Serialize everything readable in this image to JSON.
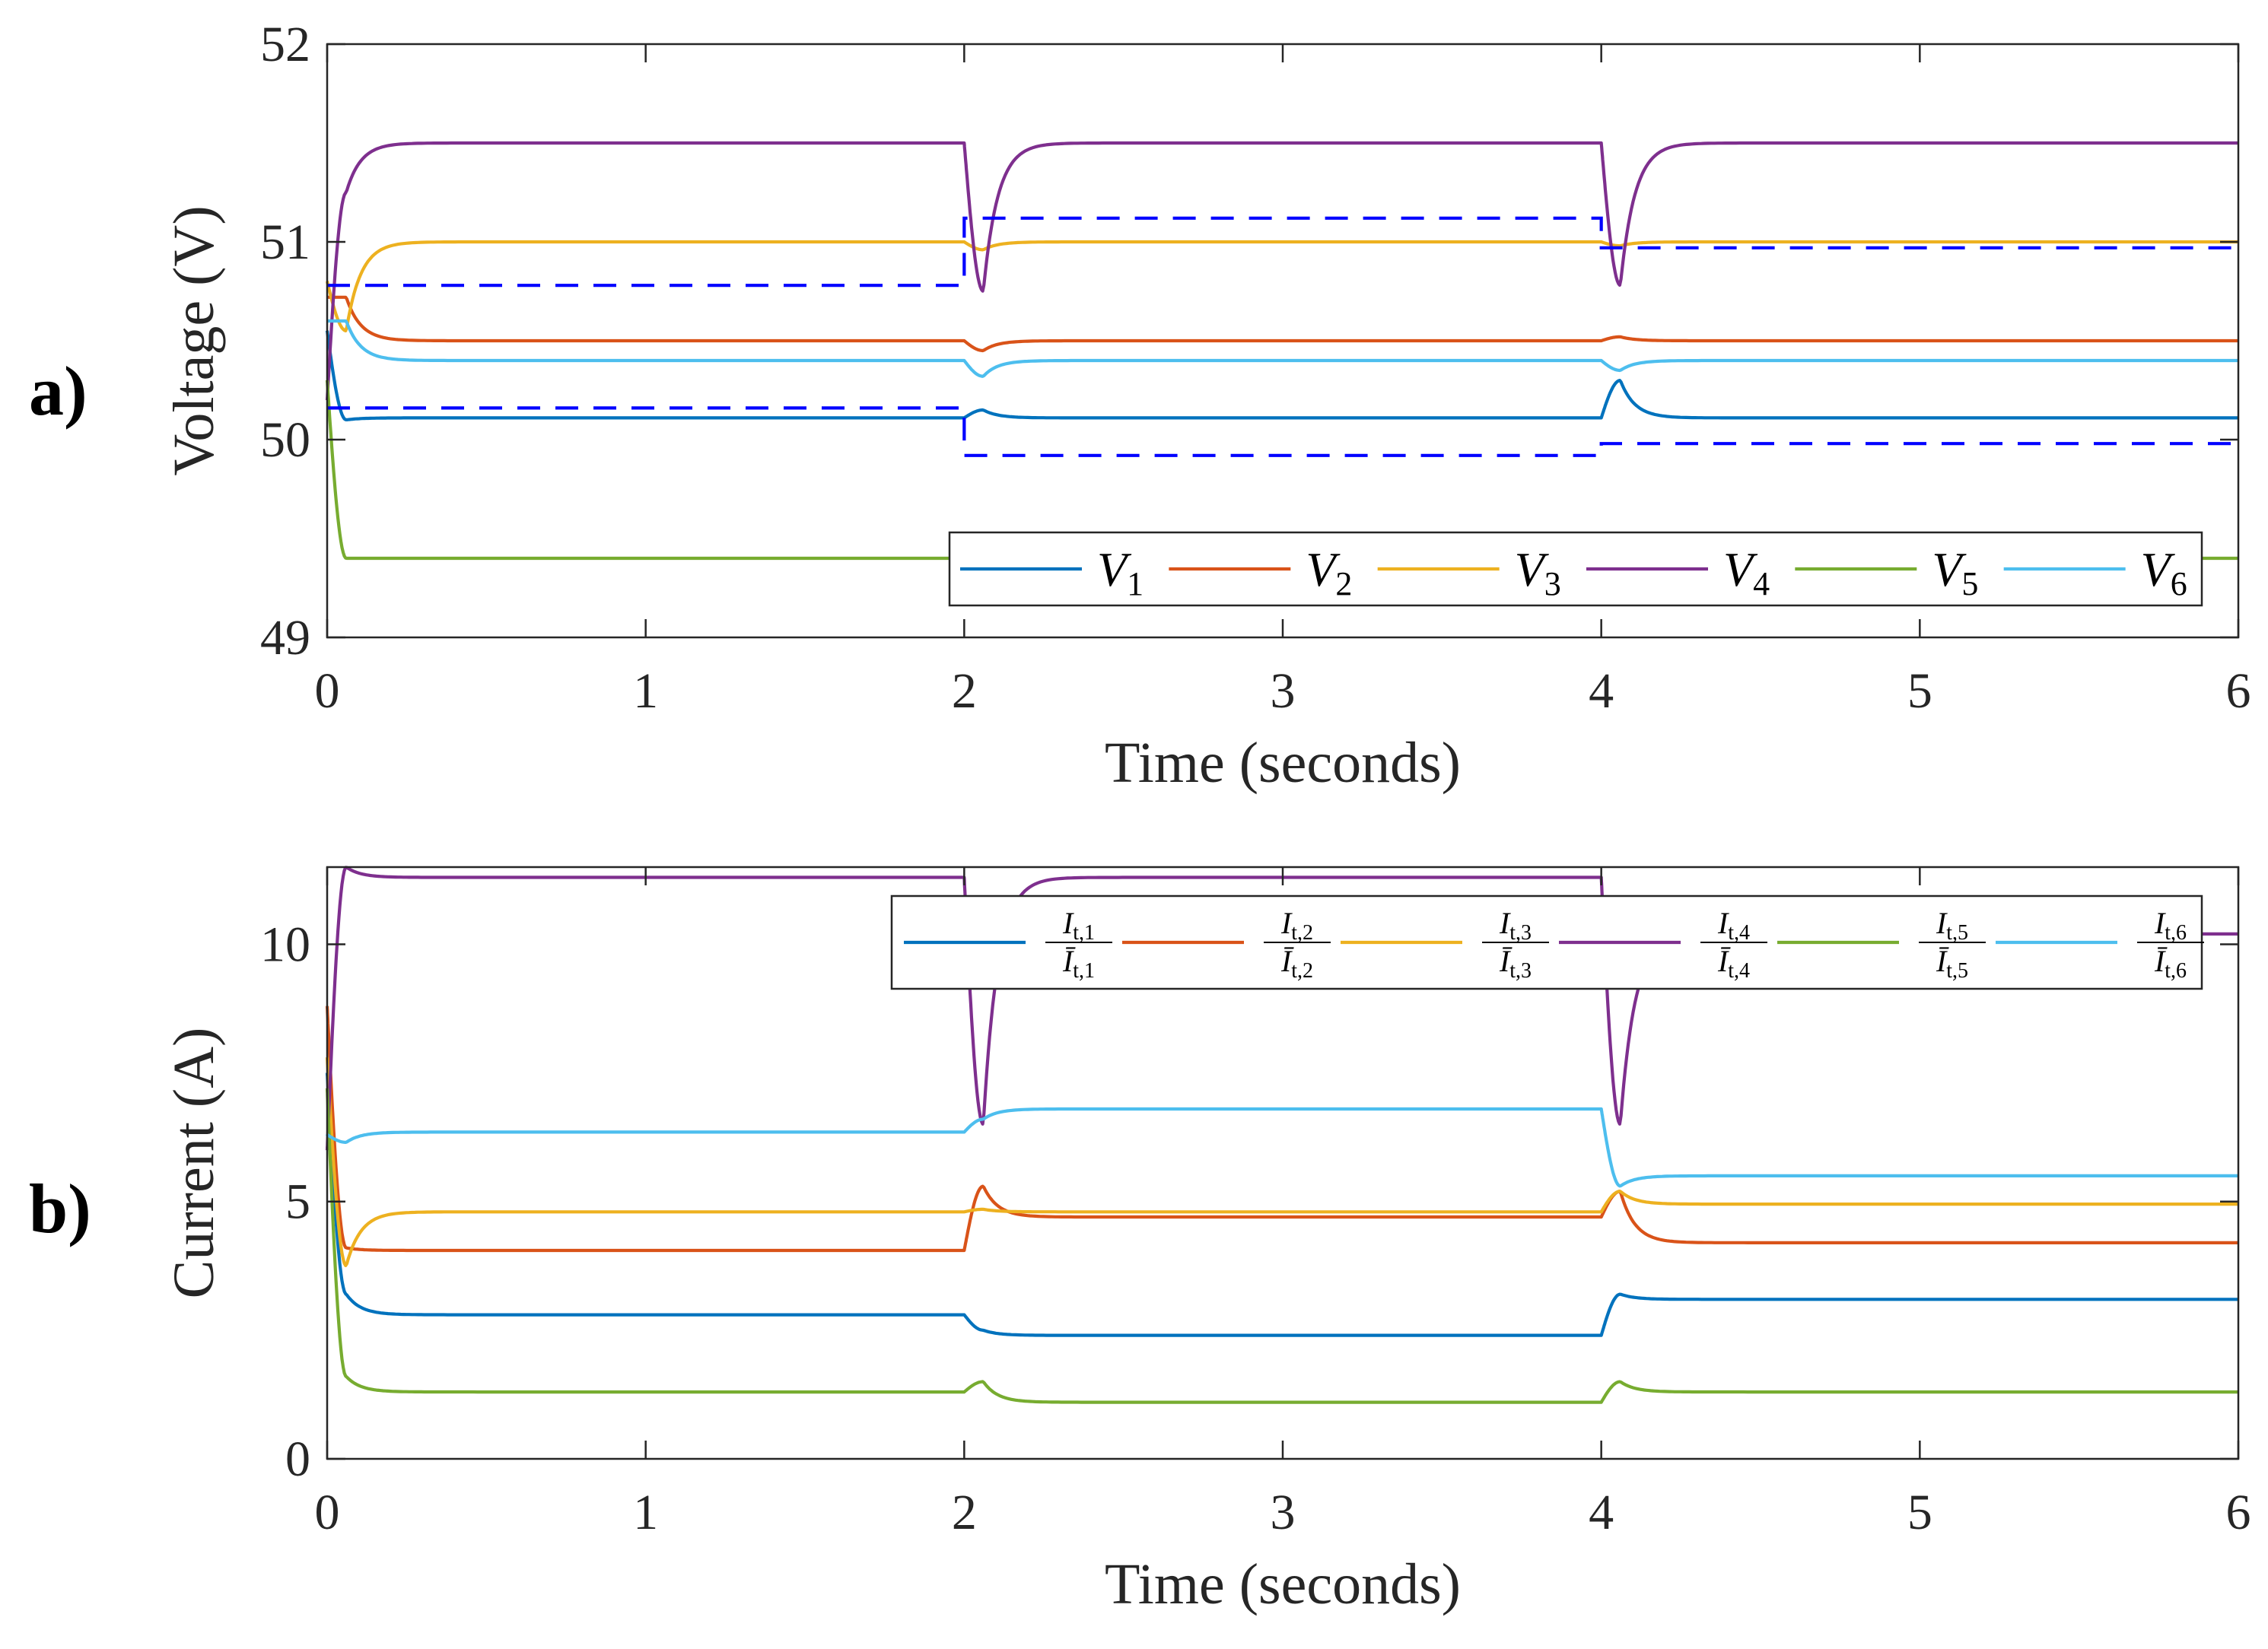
{
  "colors": {
    "V1": "#0072BD",
    "V2": "#D95319",
    "V3": "#EDB120",
    "V4": "#7E2F8E",
    "V5": "#77AC30",
    "V6": "#4DBEEE",
    "bounds": "#0000FF"
  },
  "panel_labels": {
    "a": "a)",
    "b": "b)"
  },
  "chart_data": [
    {
      "type": "line",
      "title": "",
      "xlabel": "Time (seconds)",
      "ylabel": "Voltage (V)",
      "xlim": [
        0,
        6
      ],
      "ylim": [
        49,
        52
      ],
      "xticks": [
        0,
        1,
        2,
        3,
        4,
        5,
        6
      ],
      "yticks": [
        49,
        50,
        51,
        52
      ],
      "xtick_labels": [
        "0",
        "1",
        "2",
        "3",
        "4",
        "5",
        "6"
      ],
      "ytick_labels": [
        "49",
        "50",
        "51",
        "52"
      ],
      "legend": [
        "V1",
        "V2",
        "V3",
        "V4",
        "V5",
        "V6"
      ],
      "legend_placement": "bottom-right",
      "segments": [
        [
          0,
          2
        ],
        [
          2,
          4
        ],
        [
          4,
          6
        ]
      ],
      "series": [
        {
          "name": "V1",
          "key": "V1",
          "steady": [
            50.11,
            50.11,
            50.11
          ],
          "initial": 50.55,
          "disturbance": [
            50.1,
            50.15,
            50.3
          ]
        },
        {
          "name": "V2",
          "key": "V2",
          "steady": [
            50.5,
            50.5,
            50.5
          ],
          "initial": 50.72,
          "disturbance": [
            50.72,
            50.45,
            50.52
          ]
        },
        {
          "name": "V3",
          "key": "V3",
          "steady": [
            51.0,
            51.0,
            51.0
          ],
          "initial": 50.8,
          "disturbance": [
            50.55,
            50.96,
            50.98
          ]
        },
        {
          "name": "V4",
          "key": "V4",
          "steady": [
            51.5,
            51.5,
            51.5
          ],
          "initial": 50.2,
          "disturbance": [
            51.25,
            50.75,
            50.78
          ]
        },
        {
          "name": "V5",
          "key": "V5",
          "steady": [
            49.4,
            49.4,
            49.4
          ],
          "initial": 50.3,
          "disturbance": [
            49.4,
            49.35,
            49.4
          ]
        },
        {
          "name": "V6",
          "key": "V6",
          "steady": [
            50.4,
            50.4,
            50.4
          ],
          "initial": 50.6,
          "disturbance": [
            50.6,
            50.32,
            50.35
          ]
        }
      ],
      "bounds": {
        "upper": [
          50.78,
          51.12,
          50.97
        ],
        "lower": [
          50.16,
          49.92,
          49.98
        ]
      }
    },
    {
      "type": "line",
      "title": "",
      "xlabel": "Time (seconds)",
      "ylabel": "Current (A)",
      "xlim": [
        0,
        6
      ],
      "ylim": [
        0,
        11.5
      ],
      "xticks": [
        0,
        1,
        2,
        3,
        4,
        5,
        6
      ],
      "yticks": [
        0,
        5,
        10
      ],
      "xtick_labels": [
        "0",
        "1",
        "2",
        "3",
        "4",
        "5",
        "6"
      ],
      "ytick_labels": [
        "0",
        "5",
        "10"
      ],
      "legend": [
        "It,1/Īt,1",
        "It,2/Īt,2",
        "It,3/Īt,3",
        "It,4/Īt,4",
        "It,5/Īt,5",
        "It,6/Īt,6"
      ],
      "legend_placement": "top-right",
      "segments": [
        [
          0,
          2
        ],
        [
          2,
          4
        ],
        [
          4,
          6
        ]
      ],
      "series": [
        {
          "name": "It,1/Īt,1",
          "key": "V1",
          "num_main": "I",
          "num_sub": "t,1",
          "den_main": "Ī",
          "den_sub": "t,1",
          "steady": [
            2.8,
            2.4,
            3.1
          ],
          "initial": 7.5,
          "disturbance": [
            3.2,
            2.5,
            3.2
          ]
        },
        {
          "name": "It,2/Īt,2",
          "key": "V2",
          "num_main": "I",
          "num_sub": "t,2",
          "den_main": "Ī",
          "den_sub": "t,2",
          "steady": [
            4.05,
            4.7,
            4.2
          ],
          "initial": 8.8,
          "disturbance": [
            4.1,
            5.3,
            5.2
          ]
        },
        {
          "name": "It,3/Īt,3",
          "key": "V3",
          "num_main": "I",
          "num_sub": "t,3",
          "den_main": "Ī",
          "den_sub": "t,3",
          "steady": [
            4.8,
            4.8,
            4.95
          ],
          "initial": 7.8,
          "disturbance": [
            3.75,
            4.85,
            5.2
          ]
        },
        {
          "name": "It,4/Īt,4",
          "key": "V4",
          "num_main": "I",
          "num_sub": "t,4",
          "den_main": "Ī",
          "den_sub": "t,4",
          "steady": [
            11.3,
            11.3,
            10.2
          ],
          "initial": 6.0,
          "disturbance": [
            11.5,
            6.5,
            6.5
          ]
        },
        {
          "name": "It,5/Īt,5",
          "key": "V5",
          "num_main": "I",
          "num_sub": "t,5",
          "den_main": "Ī",
          "den_sub": "t,5",
          "steady": [
            1.3,
            1.1,
            1.3
          ],
          "initial": 7.2,
          "disturbance": [
            1.6,
            1.5,
            1.5
          ]
        },
        {
          "name": "It,6/Īt,6",
          "key": "V6",
          "num_main": "I",
          "num_sub": "t,6",
          "den_main": "Ī",
          "den_sub": "t,6",
          "steady": [
            6.35,
            6.8,
            5.5
          ],
          "initial": 6.3,
          "disturbance": [
            6.15,
            6.6,
            5.3
          ]
        }
      ]
    }
  ]
}
